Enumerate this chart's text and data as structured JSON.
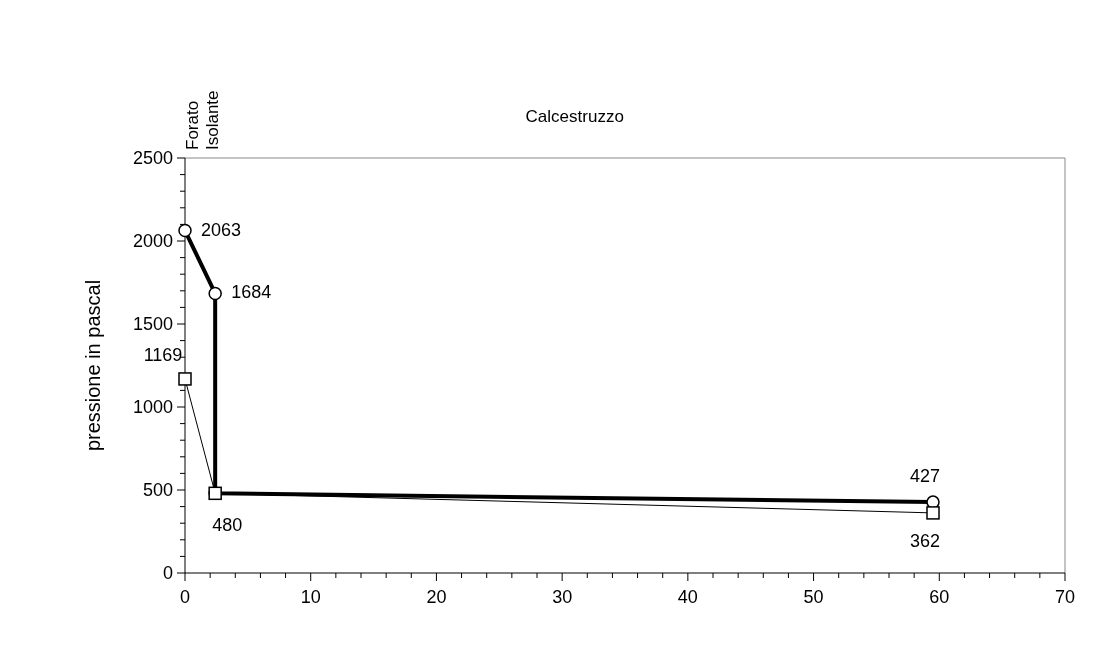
{
  "chart_data": {
    "type": "line",
    "ylabel": "pressione in pascal",
    "annotations": [
      "Forato",
      "Isolante",
      "Calcestruzzo"
    ],
    "xlim": [
      0,
      70
    ],
    "xticks": [
      0,
      10,
      20,
      30,
      40,
      50,
      60,
      70
    ],
    "ylim": [
      0,
      2500
    ],
    "yticks": [
      0,
      500,
      1000,
      1500,
      2000,
      2500
    ],
    "series": [
      {
        "color": "#000000",
        "marker": "circle",
        "x": [
          0,
          2.4,
          2.4,
          59.5
        ],
        "values": [
          2063,
          1684,
          480,
          427
        ],
        "value_labels": [
          "2063",
          "1684",
          null,
          "427"
        ]
      },
      {
        "color": "#000000",
        "marker": "square",
        "x": [
          0,
          2.4,
          59.5
        ],
        "values": [
          1169,
          480,
          362
        ],
        "value_labels": [
          "1169",
          "480",
          "362"
        ]
      }
    ]
  }
}
